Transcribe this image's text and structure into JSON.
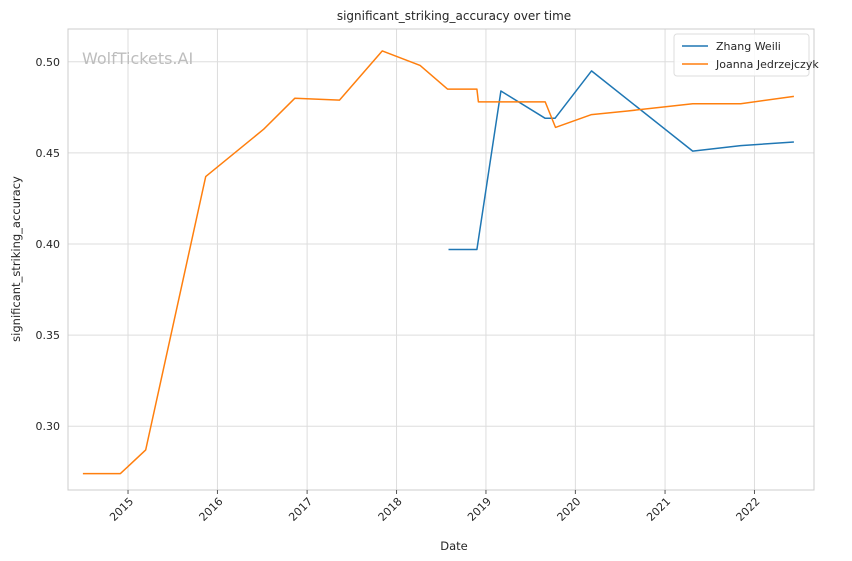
{
  "chart_data": {
    "type": "line",
    "title": "significant_striking_accuracy over time",
    "xlabel": "Date",
    "ylabel": "significant_striking_accuracy",
    "watermark": "WolfTickets.AI",
    "x_range": [
      "2014-05-01",
      "2022-09-01"
    ],
    "ylim": [
      0.265,
      0.518
    ],
    "x_ticks": [
      "2015",
      "2016",
      "2017",
      "2018",
      "2019",
      "2020",
      "2021",
      "2022"
    ],
    "y_ticks": [
      0.3,
      0.35,
      0.4,
      0.45,
      0.5
    ],
    "y_tick_labels": [
      "0.30",
      "0.35",
      "0.40",
      "0.45",
      "0.50"
    ],
    "grid": true,
    "legend_position": "top-right",
    "series": [
      {
        "name": "Zhang Weili",
        "color": "#1f77b4",
        "points": [
          [
            "2018-08-01",
            0.397
          ],
          [
            "2018-11-25",
            0.397
          ],
          [
            "2019-03-03",
            0.484
          ],
          [
            "2019-08-31",
            0.469
          ],
          [
            "2019-10-10",
            0.469
          ],
          [
            "2020-03-07",
            0.495
          ],
          [
            "2021-04-24",
            0.451
          ],
          [
            "2021-11-06",
            0.454
          ],
          [
            "2022-06-11",
            0.456
          ]
        ]
      },
      {
        "name": "Joanna Jedrzejczyk",
        "color": "#ff7f0e",
        "points": [
          [
            "2014-07-01",
            0.274
          ],
          [
            "2014-12-01",
            0.274
          ],
          [
            "2015-03-14",
            0.287
          ],
          [
            "2015-11-14",
            0.437
          ],
          [
            "2016-07-08",
            0.463
          ],
          [
            "2016-11-12",
            0.48
          ],
          [
            "2017-05-13",
            0.479
          ],
          [
            "2017-11-04",
            0.506
          ],
          [
            "2018-04-07",
            0.498
          ],
          [
            "2018-07-28",
            0.485
          ],
          [
            "2018-11-25",
            0.485
          ],
          [
            "2018-12-01",
            0.478
          ],
          [
            "2019-08-31",
            0.478
          ],
          [
            "2019-10-12",
            0.464
          ],
          [
            "2020-03-07",
            0.471
          ],
          [
            "2020-08-01",
            0.473
          ],
          [
            "2021-04-24",
            0.477
          ],
          [
            "2021-11-06",
            0.477
          ],
          [
            "2022-06-11",
            0.481
          ]
        ]
      }
    ]
  }
}
